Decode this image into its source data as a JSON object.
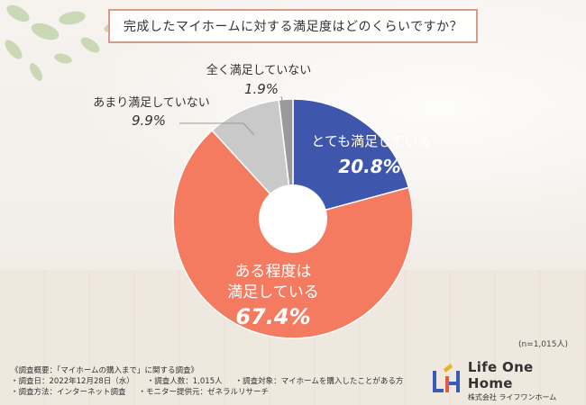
{
  "title": "完成したマイホームに対する満足度はどのくらいですか？",
  "chart_data": {
    "type": "pie",
    "donut": true,
    "categories": [
      "とても満足している",
      "ある程度は満足している",
      "あまり満足していない",
      "全く満足していない"
    ],
    "values": [
      20.8,
      67.4,
      9.9,
      1.9
    ],
    "value_labels": [
      "20.8%",
      "67.4%",
      "9.9%",
      "1.9%"
    ],
    "colors": [
      "#3f56ad",
      "#f47a60",
      "#c9c9c9",
      "#9a9a9a"
    ]
  },
  "labels": {
    "very_satisfied": "とても満足している",
    "somewhat_line1": "ある程度は",
    "somewhat_line2": "満足している",
    "not_very": "あまり満足していない",
    "not_at_all": "全く満足していない"
  },
  "sample_size": "(n=1,015人)",
  "survey": {
    "overview": "《調査概要：「マイホームの購入まで」に関する調査》",
    "date": "・調査日：2022年12月28日（水）",
    "count": "・調査人数：1,015人",
    "target": "・調査対象：マイホームを購入したことがある方",
    "method": "・調査方法：インターネット調査",
    "provider": "・モニター提供元：ゼネラルリサーチ"
  },
  "logo": {
    "name": "Life One Home",
    "company": "株式会社 ライフワンホーム"
  }
}
